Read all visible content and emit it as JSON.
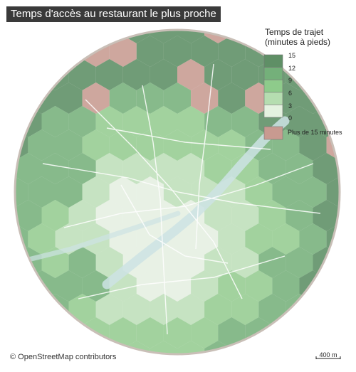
{
  "title": "Temps d'accès au restaurant le plus proche",
  "legend": {
    "title_line1": "Temps de trajet",
    "title_line2": "(minutes à pieds)",
    "classes": [
      {
        "value": "15",
        "color": "#5f8f66"
      },
      {
        "value": "12",
        "color": "#74b07a"
      },
      {
        "value": "9",
        "color": "#8ecb8b"
      },
      {
        "value": "6",
        "color": "#b5ddb0"
      },
      {
        "value": "3",
        "color": "#e4f2e0"
      },
      {
        "value": "0",
        "color": "#ffffff"
      }
    ],
    "other_label": "Plus de 15 minutes",
    "other_color": "#c89a90"
  },
  "attribution": "© OpenStreetMap contributors",
  "scale_label": "400 m",
  "colors": {
    "map_base": "#eef0ec",
    "river": "#cde3e4",
    "circle_border": "#c9bfb7",
    "urban_red": "#d98e95"
  }
}
